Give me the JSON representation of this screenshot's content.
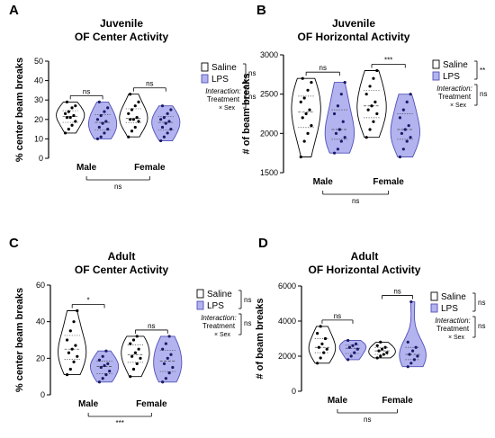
{
  "chart_data": [
    {
      "panel_letter": "A",
      "type": "violin",
      "title": "Juvenile",
      "subtitle": "OF Center Activity",
      "ylabel": "% center beam breaks",
      "xlabel": "",
      "ylim": [
        0,
        50
      ],
      "yticks": [
        0,
        10,
        20,
        30,
        40,
        50
      ],
      "categories": [
        "Male",
        "Female"
      ],
      "series": [
        {
          "name": "Saline",
          "color": "#ffffff",
          "values": [
            [
              13,
              15,
              17,
              19,
              21,
              21,
              22,
              23,
              24,
              26,
              27,
              29
            ],
            [
              11,
              14,
              16,
              19,
              20,
              20,
              21,
              23,
              25,
              27,
              29,
              33
            ]
          ]
        },
        {
          "name": "LPS",
          "color": "#b3b3ef",
          "values": [
            [
              10,
              11,
              13,
              15,
              16,
              18,
              19,
              20,
              22,
              24,
              26,
              29
            ],
            [
              9,
              11,
              13,
              15,
              16,
              18,
              19,
              20,
              21,
              23,
              25,
              27
            ]
          ]
        }
      ],
      "within_brackets": [
        "ns",
        "ns"
      ],
      "between_bracket": "ns",
      "legend_bracket": "ns",
      "interaction_bracket": "ns"
    },
    {
      "panel_letter": "B",
      "type": "violin",
      "title": "Juvenile",
      "subtitle": "OF Horizontal Activity",
      "ylabel": "# of beam breaks",
      "xlabel": "",
      "ylim": [
        1500,
        3000
      ],
      "yticks": [
        1500,
        2000,
        2500,
        3000
      ],
      "categories": [
        "Male",
        "Female"
      ],
      "series": [
        {
          "name": "Saline",
          "color": "#ffffff",
          "values": [
            [
              1700,
              1900,
              2000,
              2100,
              2200,
              2250,
              2300,
              2400,
              2450,
              2550,
              2650,
              2700
            ],
            [
              1950,
              2050,
              2150,
              2250,
              2300,
              2350,
              2400,
              2500,
              2600,
              2700,
              2800
            ]
          ]
        },
        {
          "name": "LPS",
          "color": "#b3b3ef",
          "values": [
            [
              1750,
              1800,
              1900,
              1950,
              2000,
              2050,
              2150,
              2250,
              2350,
              2500,
              2650
            ],
            [
              1700,
              1800,
              1900,
              1950,
              2000,
              2050,
              2100,
              2200,
              2300,
              2400,
              2500
            ]
          ]
        }
      ],
      "within_brackets": [
        "ns",
        "***"
      ],
      "between_bracket": "ns",
      "legend_bracket": "**",
      "interaction_bracket": "ns"
    },
    {
      "panel_letter": "C",
      "type": "violin",
      "title": "Adult",
      "subtitle": "OF Center Activity",
      "ylabel": "% center beam breaks",
      "xlabel": "",
      "ylim": [
        0,
        60
      ],
      "yticks": [
        0,
        20,
        40,
        60
      ],
      "categories": [
        "Male",
        "Female"
      ],
      "series": [
        {
          "name": "Saline",
          "color": "#ffffff",
          "values": [
            [
              11,
              14,
              18,
              21,
              23,
              25,
              27,
              30,
              35,
              40,
              46
            ],
            [
              10,
              14,
              17,
              20,
              21,
              23,
              25,
              28,
              30,
              32
            ]
          ]
        },
        {
          "name": "LPS",
          "color": "#b3b3ef",
          "values": [
            [
              7,
              9,
              11,
              13,
              15,
              16,
              17,
              19,
              21,
              24
            ],
            [
              7,
              9,
              12,
              15,
              17,
              20,
              22,
              25,
              28,
              32
            ]
          ]
        }
      ],
      "within_brackets": [
        "*",
        "ns"
      ],
      "between_bracket": "***",
      "legend_bracket": "ns",
      "interaction_bracket": "ns"
    },
    {
      "panel_letter": "D",
      "type": "violin",
      "title": "Adult",
      "subtitle": "OF Horizontal Activity",
      "ylabel": "# of beam breaks",
      "xlabel": "",
      "ylim": [
        0,
        6000
      ],
      "yticks": [
        0,
        2000,
        4000,
        6000
      ],
      "categories": [
        "Male",
        "Female"
      ],
      "series": [
        {
          "name": "Saline",
          "color": "#ffffff",
          "values": [
            [
              1600,
              1900,
              2200,
              2400,
              2500,
              2700,
              3000,
              3300,
              3700
            ],
            [
              1900,
              2000,
              2100,
              2200,
              2300,
              2400,
              2500,
              2600,
              2800
            ]
          ]
        },
        {
          "name": "LPS",
          "color": "#b3b3ef",
          "values": [
            [
              1800,
              2000,
              2200,
              2400,
              2500,
              2600,
              2700,
              2900
            ],
            [
              1400,
              1600,
              1800,
              2000,
              2100,
              2300,
              2500,
              2800,
              5100
            ]
          ]
        }
      ],
      "within_brackets": [
        "ns",
        "ns"
      ],
      "between_bracket": "ns",
      "legend_bracket": "ns",
      "interaction_bracket": "ns"
    }
  ],
  "legend": {
    "saline_label": "Saline",
    "lps_label": "LPS",
    "interaction_label": "Interaction:",
    "treatment_label": "Treatment",
    "sex_label": "× Sex"
  },
  "colors": {
    "lps_fill": "#b3b3ef",
    "lps_stroke": "#5050b8",
    "saline_fill": "#ffffff",
    "line": "#000000"
  }
}
